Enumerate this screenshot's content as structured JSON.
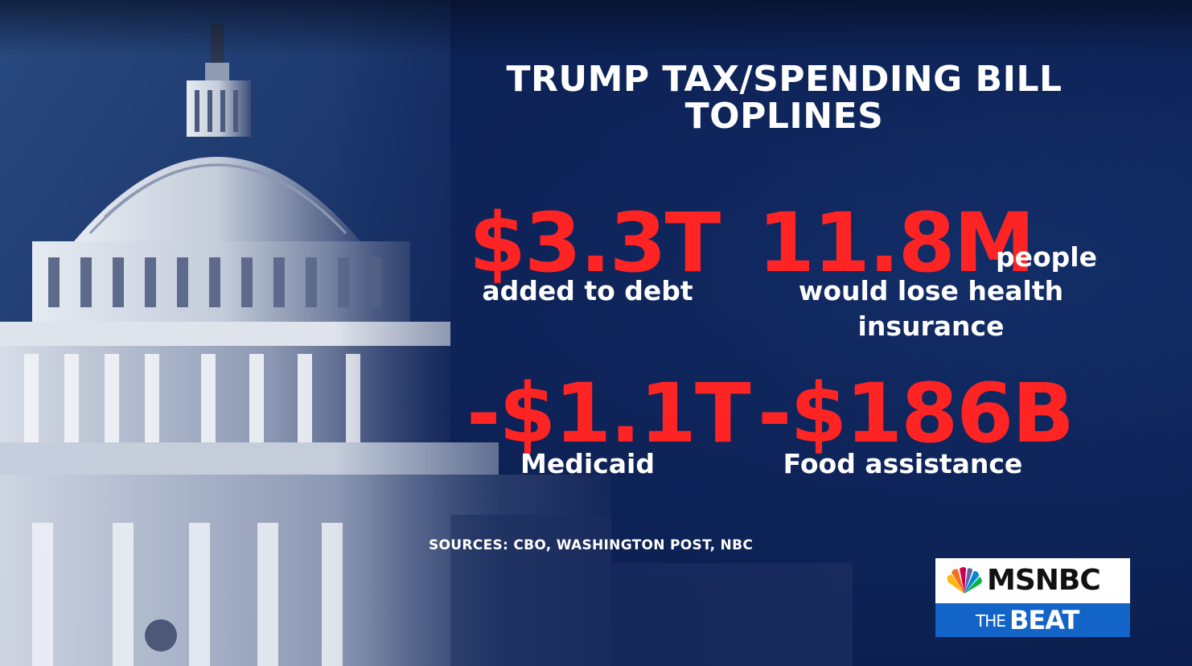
{
  "title": {
    "line1": "TRUMP TAX/SPENDING BILL",
    "line2": "TOPLINES"
  },
  "stats": [
    {
      "value": "$3.3T",
      "suffix": "",
      "description": "added to debt"
    },
    {
      "value": "11.8M",
      "suffix": "people",
      "description": "would lose health insurance"
    },
    {
      "value": "-$1.1T",
      "suffix": "",
      "description": "Medicaid"
    },
    {
      "value": "-$186B",
      "suffix": "",
      "description": "Food assistance"
    }
  ],
  "sources": "SOURCES: CBO, WASHINGTON POST, NBC",
  "logo": {
    "network": "MSNBC",
    "show_the": "THE",
    "show_name": "BEAT",
    "icon": "nbc-peacock-icon"
  },
  "colors": {
    "background": "#0e2459",
    "accent_red": "#ff2424",
    "text": "#ffffff",
    "logo_blue": "#1364c8"
  }
}
